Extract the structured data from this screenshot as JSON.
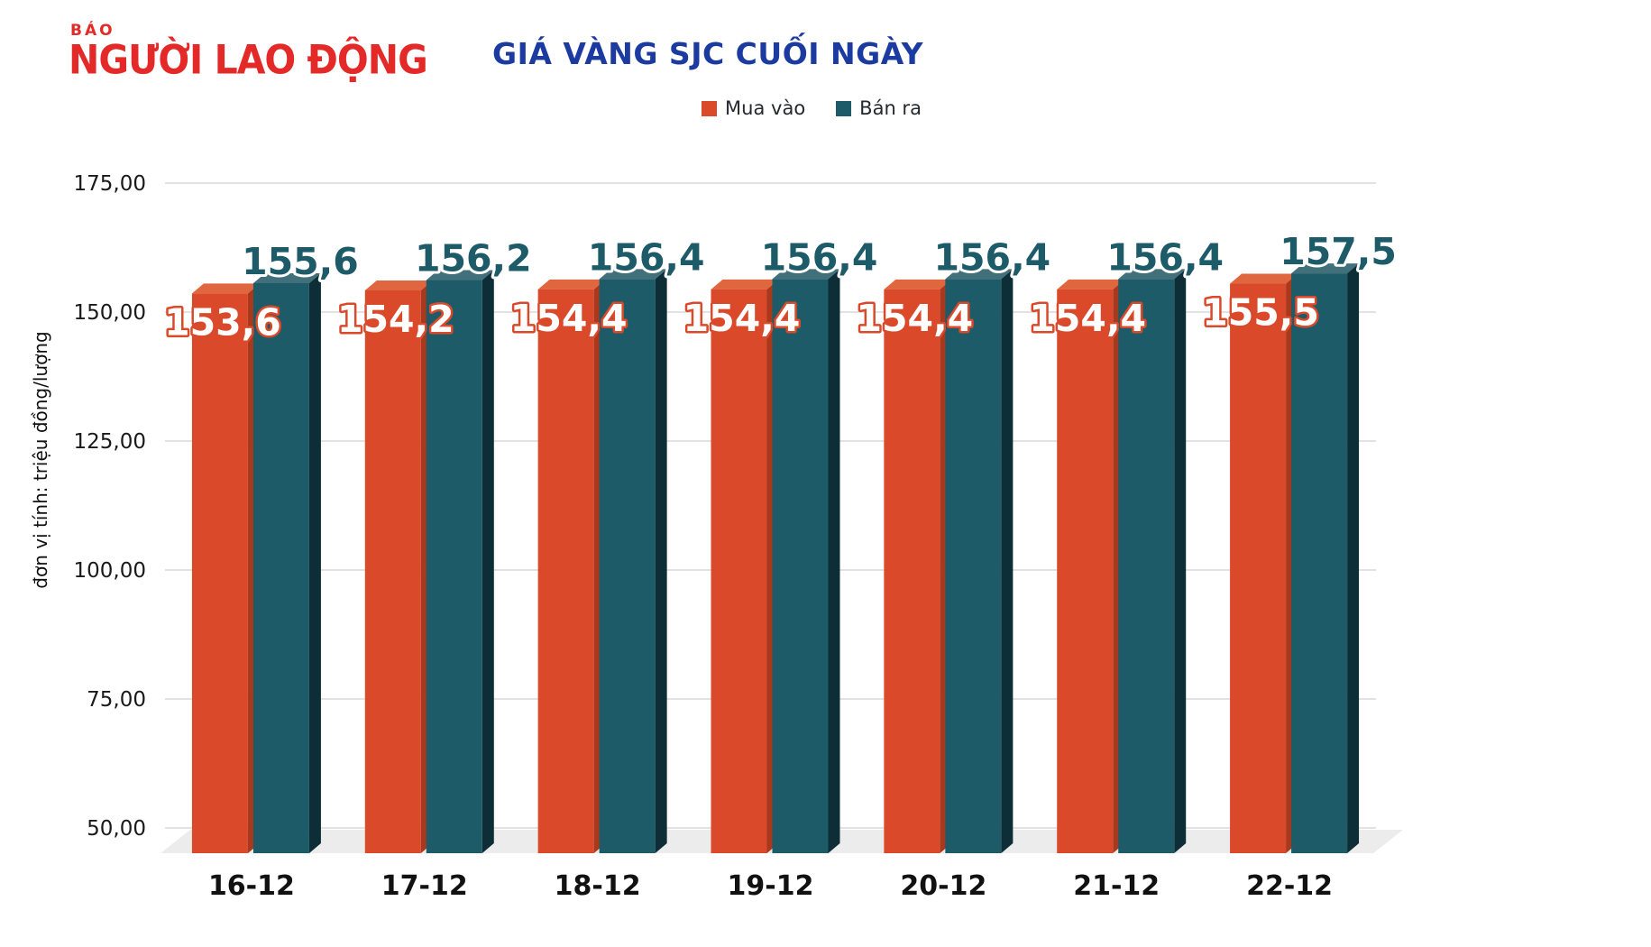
{
  "logo": {
    "small": "BÁO",
    "main": "NGƯỜI LAO ĐỘNG"
  },
  "colors": {
    "logo_red": "#e42a28",
    "title_blue": "#1c3ba0",
    "grid": "#d9d9d9",
    "floor": "#ececec",
    "axis_text": "#1a1a1a"
  },
  "chart_data": {
    "type": "bar",
    "title": "GIÁ VÀNG SJC CUỐI NGÀY",
    "ylabel": "đơn vị tính: triệu đồng/lượng",
    "categories": [
      "16-12",
      "17-12",
      "18-12",
      "19-12",
      "20-12",
      "21-12",
      "22-12"
    ],
    "series": [
      {
        "name": "Mua vào",
        "values": [
          153.6,
          154.2,
          154.4,
          154.4,
          154.4,
          154.4,
          155.5
        ],
        "labels": [
          "153,6",
          "154,2",
          "154,4",
          "154,4",
          "154,4",
          "154,4",
          "155,5"
        ],
        "color": "#d9492a",
        "color_top": "#e0663f",
        "color_side": "#a8391d",
        "label_fill": "#ffffff",
        "label_stroke": "#d9492a"
      },
      {
        "name": "Bán ra",
        "values": [
          155.6,
          156.2,
          156.4,
          156.4,
          156.4,
          156.4,
          157.5
        ],
        "labels": [
          "155,6",
          "156,2",
          "156,4",
          "156,4",
          "156,4",
          "156,4",
          "157,5"
        ],
        "color": "#1d5b68",
        "color_top": "#41707b",
        "color_side": "#0d2e37",
        "label_fill": "#1d5b68",
        "label_stroke": "#ffffff"
      }
    ],
    "ylim": [
      50,
      175
    ],
    "yticks": {
      "values": [
        175,
        150,
        125,
        100,
        75,
        50
      ],
      "labels": [
        "175,00",
        "150,00",
        "125,00",
        "100,00",
        "75,00",
        "50,00"
      ]
    },
    "grid": true,
    "legend_position": "top",
    "style": "3d-columns"
  }
}
